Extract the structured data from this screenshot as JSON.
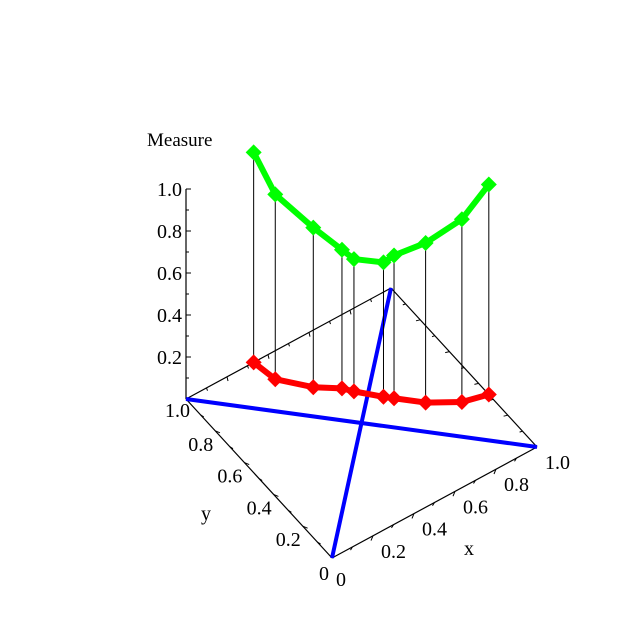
{
  "chart_data": {
    "type": "line3d",
    "title": "",
    "xlabel": "x",
    "ylabel": "y",
    "zlabel": "Measure",
    "xlim": [
      0,
      1
    ],
    "ylim": [
      0,
      1
    ],
    "zlim": [
      0,
      1
    ],
    "x_ticks": [
      "0",
      "0.2",
      "0.4",
      "0.6",
      "0.8",
      "1.0"
    ],
    "y_ticks": [
      "0",
      "0.2",
      "0.4",
      "0.6",
      "0.8",
      "1.0"
    ],
    "z_ticks": [
      "0.2",
      "0.4",
      "0.6",
      "0.8",
      "1.0"
    ],
    "grid": false,
    "points": [
      {
        "x": 0.33,
        "y": 1.0,
        "z": 1.0
      },
      {
        "x": 0.35,
        "y": 0.88,
        "z": 0.88
      },
      {
        "x": 0.45,
        "y": 0.76,
        "z": 0.76
      },
      {
        "x": 0.54,
        "y": 0.69,
        "z": 0.66
      },
      {
        "x": 0.57,
        "y": 0.65,
        "z": 0.63
      },
      {
        "x": 0.65,
        "y": 0.56,
        "z": 0.64
      },
      {
        "x": 0.68,
        "y": 0.53,
        "z": 0.68
      },
      {
        "x": 0.77,
        "y": 0.44,
        "z": 0.76
      },
      {
        "x": 0.89,
        "y": 0.36,
        "z": 0.87
      },
      {
        "x": 1.0,
        "y": 0.33,
        "z": 1.0
      }
    ],
    "diagonals": [
      {
        "from": [
          0,
          0
        ],
        "to": [
          1,
          1
        ]
      },
      {
        "from": [
          0,
          1
        ],
        "to": [
          1,
          0
        ]
      }
    ],
    "colors": {
      "curve": "#00ff00",
      "projection": "#ff0000",
      "diagonal": "#0000ff",
      "axes": "#000000"
    }
  }
}
